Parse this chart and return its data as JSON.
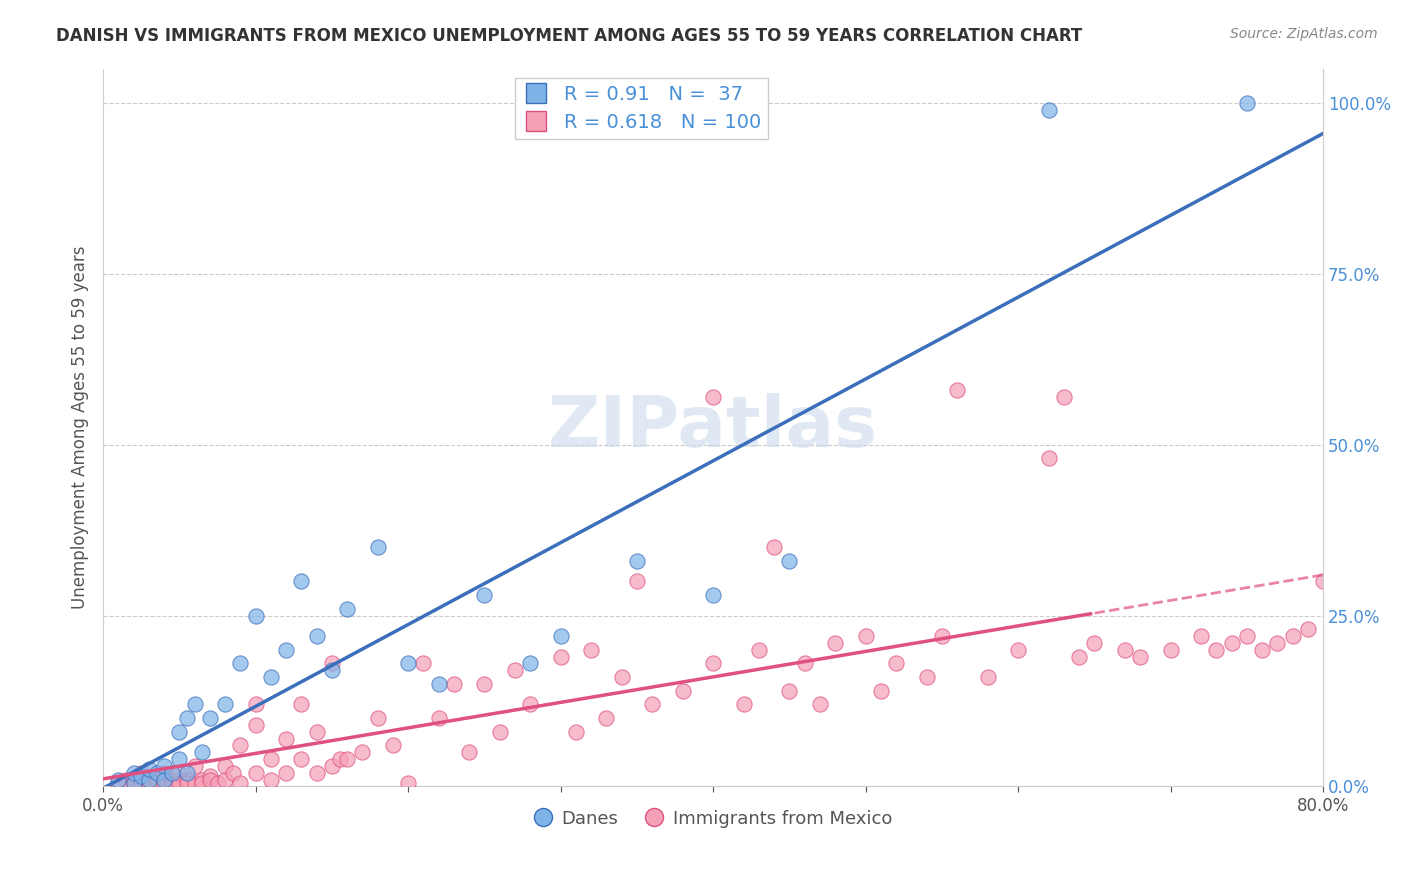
{
  "title": "DANISH VS IMMIGRANTS FROM MEXICO UNEMPLOYMENT AMONG AGES 55 TO 59 YEARS CORRELATION CHART",
  "source": "Source: ZipAtlas.com",
  "ylabel": "Unemployment Among Ages 55 to 59 years",
  "x_min": 0.0,
  "x_max": 0.8,
  "y_min": 0.0,
  "y_max": 1.05,
  "blue_R": 0.91,
  "blue_N": 37,
  "pink_R": 0.618,
  "pink_N": 100,
  "blue_color": "#7EB3E8",
  "blue_line_color": "#3B6FBB",
  "pink_color": "#F4A0B5",
  "pink_line_color": "#E05080",
  "legend_label_blue": "Danes",
  "legend_label_pink": "Immigrants from Mexico",
  "right_ytick_labels": [
    "0.0%",
    "25.0%",
    "50.0%",
    "75.0%",
    "100.0%"
  ],
  "right_ytick_values": [
    0.0,
    0.25,
    0.5,
    0.75,
    1.0
  ],
  "watermark": "ZIPatlas",
  "blue_scatter_x": [
    0.01,
    0.02,
    0.02,
    0.025,
    0.03,
    0.03,
    0.035,
    0.04,
    0.04,
    0.045,
    0.05,
    0.05,
    0.055,
    0.055,
    0.06,
    0.065,
    0.07,
    0.08,
    0.09,
    0.1,
    0.11,
    0.12,
    0.13,
    0.14,
    0.15,
    0.16,
    0.18,
    0.2,
    0.22,
    0.25,
    0.28,
    0.3,
    0.35,
    0.4,
    0.45,
    0.62,
    0.75
  ],
  "blue_scatter_y": [
    0.01,
    0.005,
    0.02,
    0.015,
    0.01,
    0.025,
    0.02,
    0.03,
    0.01,
    0.02,
    0.04,
    0.08,
    0.02,
    0.1,
    0.12,
    0.05,
    0.1,
    0.12,
    0.18,
    0.25,
    0.16,
    0.2,
    0.3,
    0.22,
    0.17,
    0.26,
    0.35,
    0.18,
    0.15,
    0.28,
    0.18,
    0.22,
    0.33,
    0.28,
    0.33,
    0.99,
    1.0
  ],
  "pink_scatter_x": [
    0.01,
    0.015,
    0.02,
    0.02,
    0.025,
    0.025,
    0.03,
    0.03,
    0.035,
    0.035,
    0.04,
    0.04,
    0.04,
    0.045,
    0.045,
    0.05,
    0.05,
    0.05,
    0.055,
    0.055,
    0.06,
    0.06,
    0.065,
    0.065,
    0.07,
    0.07,
    0.075,
    0.08,
    0.08,
    0.085,
    0.09,
    0.09,
    0.1,
    0.1,
    0.1,
    0.11,
    0.11,
    0.12,
    0.12,
    0.13,
    0.13,
    0.14,
    0.14,
    0.15,
    0.15,
    0.155,
    0.16,
    0.17,
    0.18,
    0.19,
    0.2,
    0.21,
    0.22,
    0.23,
    0.24,
    0.25,
    0.26,
    0.27,
    0.28,
    0.3,
    0.31,
    0.32,
    0.33,
    0.34,
    0.35,
    0.36,
    0.38,
    0.4,
    0.4,
    0.42,
    0.43,
    0.44,
    0.45,
    0.46,
    0.47,
    0.48,
    0.5,
    0.51,
    0.52,
    0.54,
    0.55,
    0.56,
    0.58,
    0.6,
    0.62,
    0.63,
    0.64,
    0.65,
    0.67,
    0.68,
    0.7,
    0.72,
    0.73,
    0.74,
    0.75,
    0.76,
    0.77,
    0.78,
    0.79,
    0.8
  ],
  "pink_scatter_y": [
    0.005,
    0.01,
    0.01,
    0.005,
    0.005,
    0.02,
    0.01,
    0.005,
    0.01,
    0.005,
    0.01,
    0.005,
    0.02,
    0.01,
    0.005,
    0.01,
    0.02,
    0.005,
    0.01,
    0.005,
    0.005,
    0.03,
    0.01,
    0.005,
    0.015,
    0.01,
    0.005,
    0.03,
    0.01,
    0.02,
    0.06,
    0.005,
    0.02,
    0.09,
    0.12,
    0.04,
    0.01,
    0.07,
    0.02,
    0.04,
    0.12,
    0.02,
    0.08,
    0.18,
    0.03,
    0.04,
    0.04,
    0.05,
    0.1,
    0.06,
    0.005,
    0.18,
    0.1,
    0.15,
    0.05,
    0.15,
    0.08,
    0.17,
    0.12,
    0.19,
    0.08,
    0.2,
    0.1,
    0.16,
    0.3,
    0.12,
    0.14,
    0.18,
    0.57,
    0.12,
    0.2,
    0.35,
    0.14,
    0.18,
    0.12,
    0.21,
    0.22,
    0.14,
    0.18,
    0.16,
    0.22,
    0.58,
    0.16,
    0.2,
    0.48,
    0.57,
    0.19,
    0.21,
    0.2,
    0.19,
    0.2,
    0.22,
    0.2,
    0.21,
    0.22,
    0.2,
    0.21,
    0.22,
    0.23,
    0.3
  ],
  "pink_line_split": 0.65
}
